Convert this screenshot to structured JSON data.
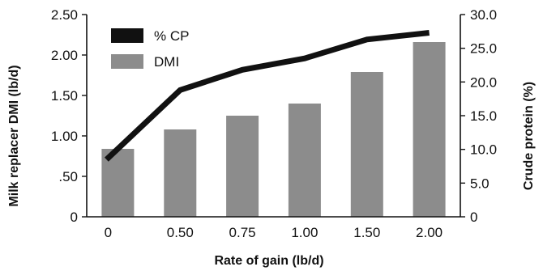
{
  "chart_data": {
    "type": "bar",
    "categories": [
      "0",
      "0.50",
      "0.75",
      "1.00",
      "1.50",
      "2.00"
    ],
    "series": [
      {
        "name": "DMI",
        "type": "bar",
        "axis": "left",
        "color": "#8c8c8c",
        "values": [
          0.84,
          1.08,
          1.25,
          1.4,
          1.79,
          2.16
        ]
      },
      {
        "name": "% CP",
        "type": "line",
        "axis": "right",
        "color": "#111111",
        "values": [
          8.5,
          18.8,
          21.8,
          23.5,
          26.3,
          27.3
        ]
      }
    ],
    "xlabel": "Rate of gain (lb/d)",
    "ylabel": "Milk replacer DMI (lb/d)",
    "y2label": "Crude protein (%)",
    "ylim": [
      0,
      2.5
    ],
    "y2lim": [
      0,
      30
    ],
    "yticks": [
      "0",
      ".50",
      "1.00",
      "1.50",
      "2.00",
      "2.50"
    ],
    "y2ticks": [
      "0",
      "5.0",
      "10.0",
      "15.0",
      "20.0",
      "25.0",
      "30.0"
    ],
    "grid": false,
    "legend": "top-left"
  }
}
